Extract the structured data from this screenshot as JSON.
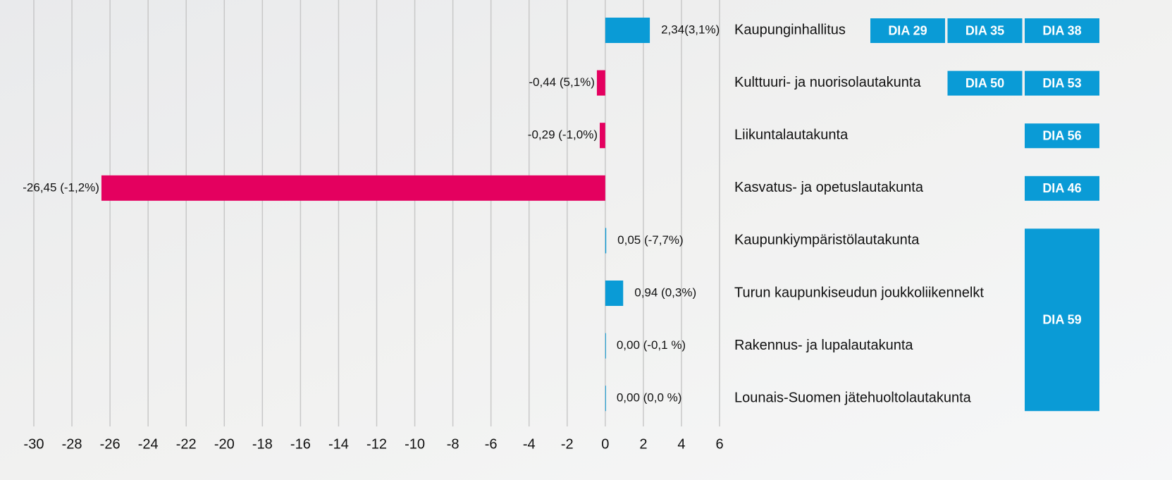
{
  "chart_data": {
    "type": "barh",
    "categories": [
      "Kaupunginhallitus",
      "Kulttuuri- ja nuorisolautakunta",
      "Liikuntalautakunta",
      "Kasvatus- ja opetuslautakunta",
      "Kaupunkiympäristölautakunta",
      "Turun kaupunkiseudun joukkoliikennelkt",
      "Rakennus- ja lupalautakunta",
      "Lounais-Suomen jätehuoltolautakunta"
    ],
    "values": [
      2.34,
      -0.44,
      -0.29,
      -26.45,
      0.05,
      0.94,
      0.0,
      0.0
    ],
    "value_labels": [
      "2,34(3,1%)",
      "-0,44 (5,1%)",
      "-0,29 (-1,0%)",
      "-26,45 (-1,2%)",
      "0,05 (-7,7%)",
      "0,94 (0,3%)",
      "0,00 (-0,1 %)",
      "0,00 (0,0 %)"
    ],
    "colors": [
      "#0a9bd6",
      "#e4005f",
      "#e4005f",
      "#e4005f",
      "#0a9bd6",
      "#0a9bd6",
      "#0a9bd6",
      "#0a9bd6"
    ],
    "xlim": [
      -30,
      6
    ],
    "xticks": [
      -30,
      -28,
      -26,
      -24,
      -22,
      -20,
      -18,
      -16,
      -14,
      -12,
      -10,
      -8,
      -6,
      -4,
      -2,
      0,
      2,
      4,
      6
    ],
    "grid": true,
    "dia_links": [
      [
        "DIA 29",
        "DIA 35",
        "DIA 38"
      ],
      [
        "DIA 50",
        "DIA 53"
      ],
      [
        "DIA 56"
      ],
      [
        "DIA 46"
      ],
      [
        "DIA 59"
      ],
      [],
      [],
      []
    ],
    "button_color": "#0a9bd6"
  }
}
